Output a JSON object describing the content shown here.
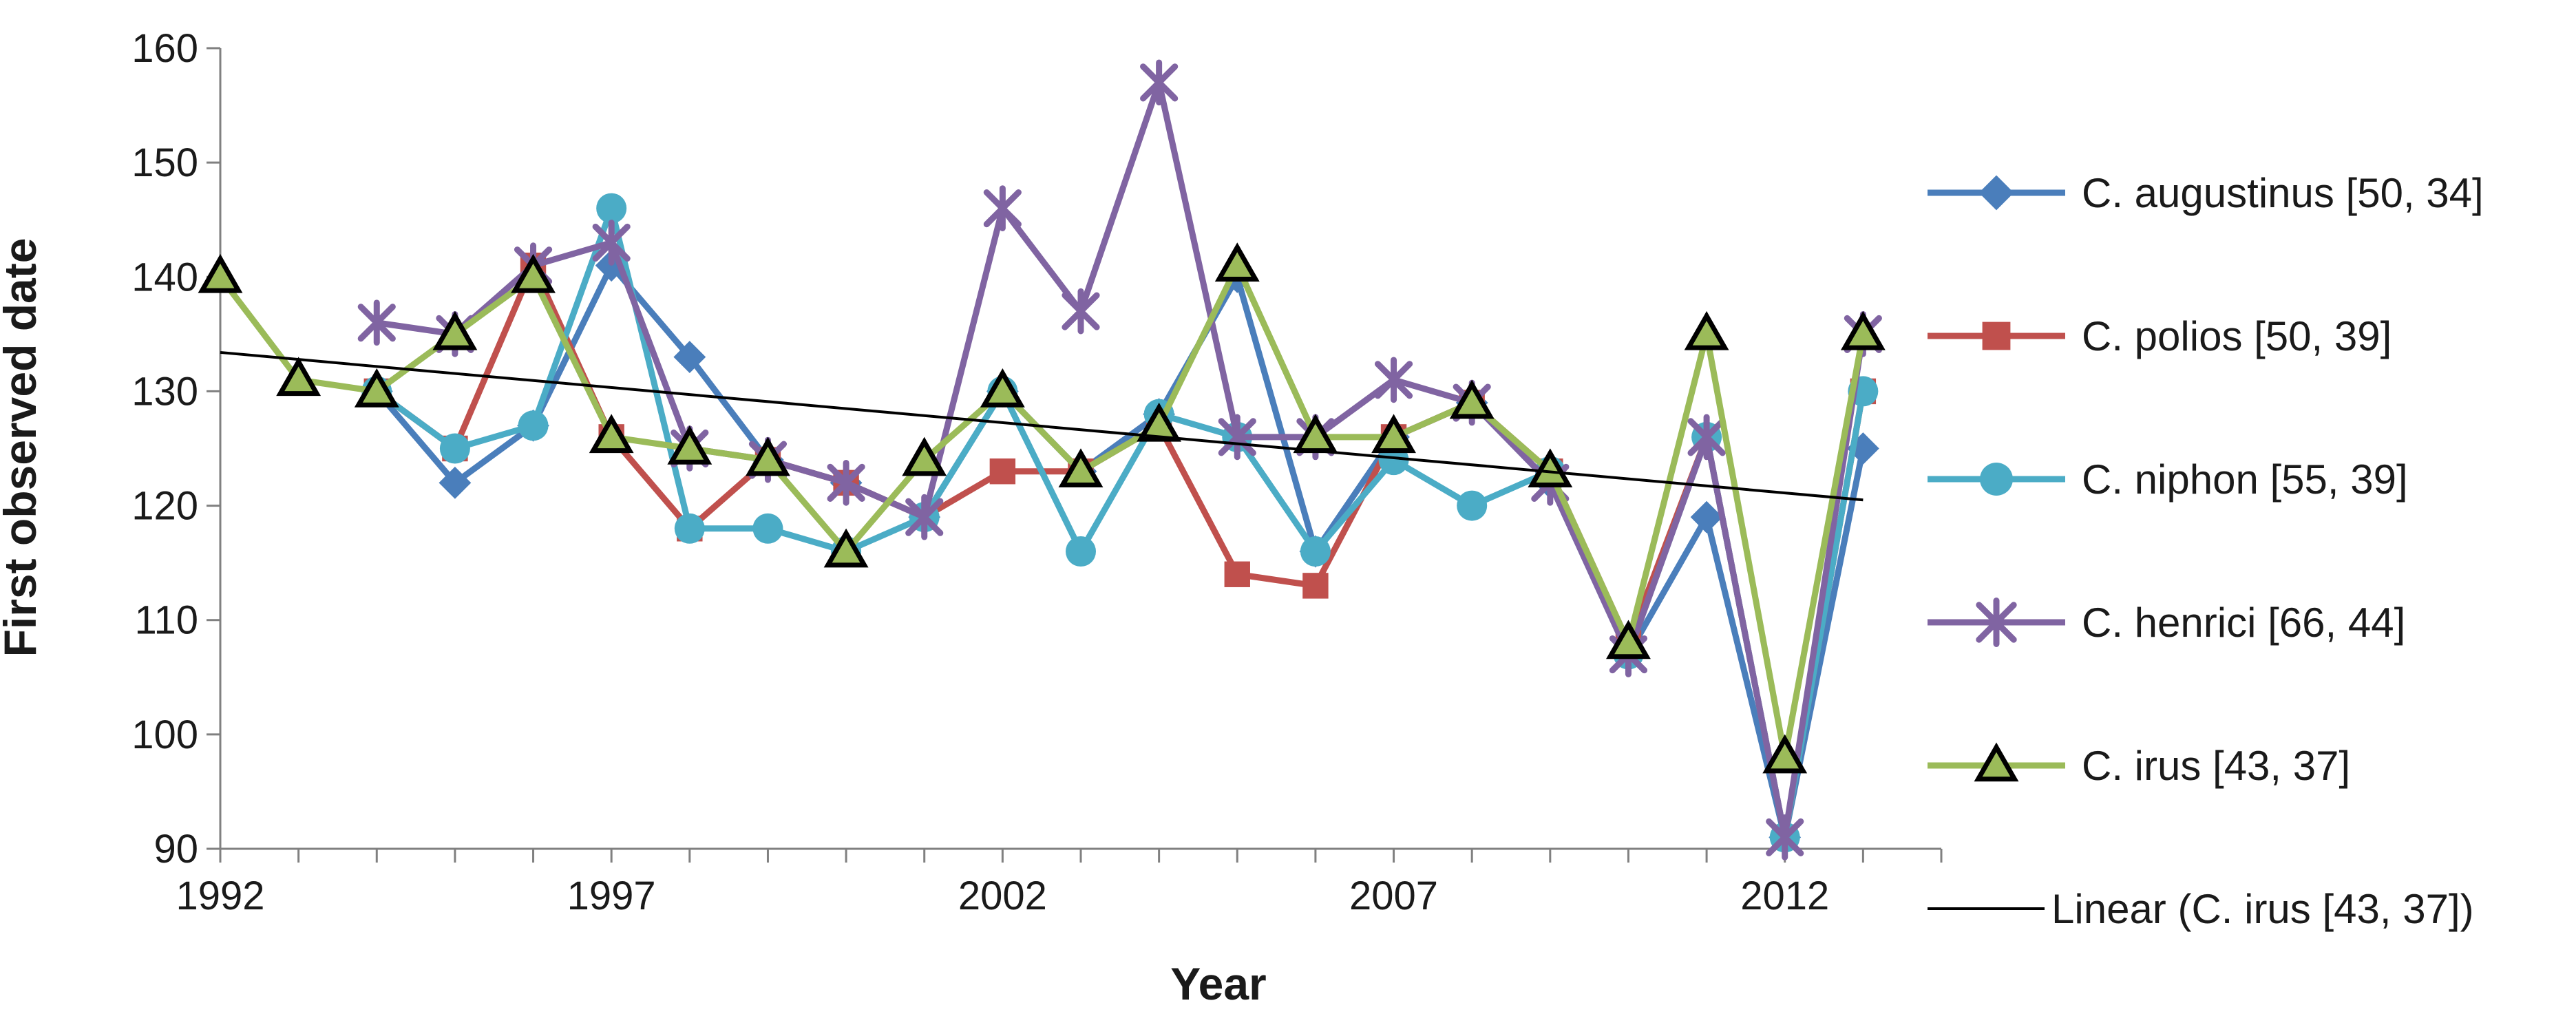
{
  "chart_data": {
    "type": "line",
    "xlabel": "Year",
    "ylabel": "First  observed  date",
    "xlim": [
      1992,
      2014
    ],
    "ylim": [
      90,
      160
    ],
    "x_ticks": [
      "1992",
      "1997",
      "2002",
      "2007",
      "2012"
    ],
    "y_ticks": [
      "90",
      "100",
      "110",
      "120",
      "130",
      "140",
      "150",
      "160"
    ],
    "grid": false,
    "legend_position": "right",
    "series": [
      {
        "name": "C. augustinus [50, 34]",
        "color": "#4A7EBB",
        "marker": "diamond",
        "points": [
          [
            1994,
            130
          ],
          [
            1995,
            122
          ],
          [
            1996,
            127
          ],
          [
            1997,
            141
          ],
          [
            1998,
            133
          ],
          [
            1999,
            124
          ],
          [
            2000,
            122
          ],
          [
            2001,
            119
          ],
          [
            2002,
            130
          ],
          [
            2003,
            123
          ],
          [
            2004,
            128
          ],
          [
            2005,
            140
          ],
          [
            2006,
            116
          ],
          [
            2007,
            126
          ],
          [
            2008,
            129
          ],
          [
            2009,
            122
          ],
          [
            2010,
            107
          ],
          [
            2011,
            119
          ],
          [
            2012,
            91
          ],
          [
            2013,
            125
          ]
        ]
      },
      {
        "name": "C. polios [50, 39]",
        "color": "#C0504D",
        "marker": "square",
        "points": [
          [
            1994,
            130
          ],
          [
            1995,
            125
          ],
          [
            1996,
            141
          ],
          [
            1997,
            126
          ],
          [
            1998,
            118
          ],
          [
            1999,
            124
          ],
          [
            2000,
            122
          ],
          [
            2001,
            119
          ],
          [
            2002,
            123
          ],
          [
            2003,
            123
          ],
          [
            2004,
            127
          ],
          [
            2005,
            114
          ],
          [
            2006,
            113
          ],
          [
            2007,
            126
          ],
          [
            2008,
            129
          ],
          [
            2009,
            123
          ],
          [
            2010,
            108
          ],
          [
            2011,
            126
          ],
          [
            2012,
            91
          ],
          [
            2013,
            130
          ]
        ]
      },
      {
        "name": "C. niphon [55, 39]",
        "color": "#4BACC6",
        "marker": "circle",
        "points": [
          [
            1994,
            130
          ],
          [
            1995,
            125
          ],
          [
            1996,
            127
          ],
          [
            1997,
            146
          ],
          [
            1998,
            118
          ],
          [
            1999,
            118
          ],
          [
            2000,
            116
          ],
          [
            2001,
            119
          ],
          [
            2002,
            130
          ],
          [
            2003,
            116
          ],
          [
            2004,
            128
          ],
          [
            2005,
            126
          ],
          [
            2006,
            116
          ],
          [
            2007,
            124
          ],
          [
            2008,
            120
          ],
          [
            2009,
            123
          ],
          [
            2010,
            107
          ],
          [
            2011,
            126
          ],
          [
            2012,
            91
          ],
          [
            2013,
            130
          ]
        ]
      },
      {
        "name": "C. henrici [66, 44]",
        "color": "#8064A2",
        "marker": "star",
        "points": [
          [
            1994,
            136
          ],
          [
            1995,
            135
          ],
          [
            1996,
            141
          ],
          [
            1997,
            143
          ],
          [
            1998,
            125
          ],
          [
            1999,
            124
          ],
          [
            2000,
            122
          ],
          [
            2001,
            119
          ],
          [
            2002,
            146
          ],
          [
            2003,
            137
          ],
          [
            2004,
            157
          ],
          [
            2005,
            126
          ],
          [
            2006,
            126
          ],
          [
            2007,
            131
          ],
          [
            2008,
            129
          ],
          [
            2009,
            122
          ],
          [
            2010,
            107
          ],
          [
            2011,
            126
          ],
          [
            2012,
            91
          ],
          [
            2013,
            135
          ]
        ]
      },
      {
        "name": "C. irus [43, 37]",
        "color": "#9BBB59",
        "marker": "triangle",
        "points": [
          [
            1992,
            140
          ],
          [
            1993,
            131
          ],
          [
            1994,
            130
          ],
          [
            1995,
            135
          ],
          [
            1996,
            140
          ],
          [
            1997,
            126
          ],
          [
            1998,
            125
          ],
          [
            1999,
            124
          ],
          [
            2000,
            116
          ],
          [
            2001,
            124
          ],
          [
            2002,
            130
          ],
          [
            2003,
            123
          ],
          [
            2004,
            127
          ],
          [
            2005,
            141
          ],
          [
            2006,
            126
          ],
          [
            2007,
            126
          ],
          [
            2008,
            129
          ],
          [
            2009,
            123
          ],
          [
            2010,
            108
          ],
          [
            2011,
            135
          ],
          [
            2012,
            98
          ],
          [
            2013,
            135
          ]
        ]
      }
    ],
    "trendline": {
      "name": "Linear (C. irus [43, 37])",
      "color": "#000000",
      "x": [
        1992,
        2013
      ],
      "y": [
        133.4,
        120.5
      ]
    }
  }
}
